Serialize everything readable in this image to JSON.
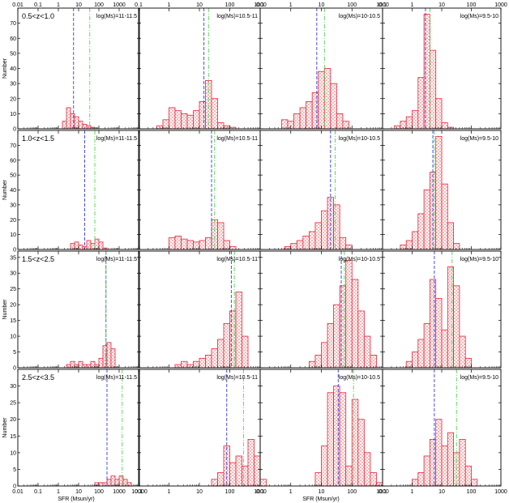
{
  "chart_data": {
    "type": "bar",
    "xlabel": "SFR  (Msun/yr)",
    "ylabel": "Number",
    "x_scale": "log",
    "colors": {
      "hist_edge": "#e8213a",
      "hist_fill": "#f5b8b8",
      "median_line": "#3a3ae0",
      "mean_line": "#4fd34f"
    },
    "x_ticks": [
      [
        "0.01",
        "0.1",
        "1",
        "10",
        "100",
        "1000"
      ],
      [
        "0.1",
        "1",
        "10",
        "100",
        "1000"
      ],
      [
        "0.1",
        "1",
        "10",
        "100",
        "1000"
      ],
      [
        "0.1",
        "1",
        "10",
        "100",
        "1000",
        "10000"
      ]
    ],
    "bottom_ticks": [
      [
        "0.01",
        "0.1",
        "1",
        "10",
        "100",
        "1000",
        "10000"
      ],
      [
        "0.1",
        "1",
        "10",
        "100",
        "1000"
      ],
      [
        "0.1",
        "1",
        "10",
        "100",
        "1000"
      ],
      [
        "0.1",
        "1",
        "10",
        "100",
        "1000",
        "10000"
      ]
    ],
    "columns": [
      "log(Ms)=11-11.5",
      "log(Ms)=10.5-11",
      "log(Ms)=10-10.5",
      "log(Ms)=9.5-10"
    ],
    "rows": [
      {
        "label": "0.5<z<1.0",
        "yticks": [
          "0",
          "10",
          "20",
          "30",
          "40",
          "50",
          "60",
          "70"
        ],
        "ylim": [
          0,
          80
        ],
        "panels": [
          {
            "xlim": [
              0.01,
              10000
            ],
            "bin_edges_log": [
              0.2,
              0.4,
              0.6,
              0.8,
              1.0,
              1.2,
              1.4,
              1.6,
              1.8,
              2.0
            ],
            "counts": [
              5,
              14,
              10,
              8,
              5,
              3,
              2,
              1,
              0
            ],
            "lines_log": [
              0.75,
              1.55
            ]
          },
          {
            "xlim": [
              0.1,
              1000
            ],
            "bin_edges_log": [
              -0.4,
              -0.2,
              0,
              0.2,
              0.4,
              0.6,
              0.8,
              1.0,
              1.2,
              1.4,
              1.6,
              1.8,
              2.0,
              2.2
            ],
            "counts": [
              2,
              6,
              14,
              12,
              10,
              9,
              12,
              18,
              32,
              20,
              4,
              2,
              1
            ],
            "lines_log": [
              1.15,
              1.3
            ]
          },
          {
            "xlim": [
              0.1,
              1000
            ],
            "bin_edges_log": [
              -0.3,
              -0.1,
              0.1,
              0.3,
              0.5,
              0.7,
              0.9,
              1.1,
              1.3,
              1.5,
              1.7,
              1.9
            ],
            "counts": [
              6,
              5,
              10,
              14,
              18,
              24,
              38,
              40,
              30,
              10,
              5
            ],
            "lines_log": [
              0.85,
              1.1
            ]
          },
          {
            "xlim": [
              0.1,
              1000
            ],
            "bin_edges_log": [
              -0.6,
              -0.4,
              -0.2,
              0,
              0.2,
              0.4,
              0.6,
              0.8,
              1.0,
              1.2,
              1.4
            ],
            "counts": [
              2,
              5,
              8,
              12,
              34,
              76,
              52,
              20,
              4,
              1
            ],
            "lines_log": [
              0.45,
              0.6
            ]
          }
        ]
      },
      {
        "label": "1.0<z<1.5",
        "yticks": [
          "0",
          "10",
          "20",
          "30",
          "40",
          "50",
          "60",
          "70"
        ],
        "ylim": [
          0,
          80
        ],
        "panels": [
          {
            "xlim": [
              0.01,
              10000
            ],
            "bin_edges_log": [
              0.6,
              0.8,
              1.0,
              1.2,
              1.4,
              1.6,
              1.8,
              2.0,
              2.2,
              2.4
            ],
            "counts": [
              4,
              5,
              3,
              2,
              6,
              4,
              7,
              5,
              1
            ],
            "lines_log": [
              1.3,
              1.8
            ]
          },
          {
            "xlim": [
              0.1,
              1000
            ],
            "bin_edges_log": [
              0.0,
              0.2,
              0.4,
              0.6,
              0.8,
              1.0,
              1.2,
              1.4,
              1.6,
              1.8,
              2.0,
              2.2
            ],
            "counts": [
              8,
              9,
              7,
              6,
              5,
              6,
              8,
              20,
              18,
              6,
              2
            ],
            "lines_log": [
              1.4,
              1.5
            ]
          },
          {
            "xlim": [
              0.1,
              1000
            ],
            "bin_edges_log": [
              -0.2,
              0,
              0.2,
              0.4,
              0.6,
              0.8,
              1.0,
              1.2,
              1.4,
              1.6,
              1.8,
              2.0
            ],
            "counts": [
              2,
              4,
              6,
              9,
              12,
              18,
              26,
              35,
              30,
              8,
              3
            ],
            "lines_log": [
              1.3,
              1.45
            ]
          },
          {
            "xlim": [
              0.1,
              1000
            ],
            "bin_edges_log": [
              -0.4,
              -0.2,
              0,
              0.2,
              0.4,
              0.6,
              0.8,
              1.0,
              1.2,
              1.4,
              1.6
            ],
            "counts": [
              3,
              6,
              12,
              24,
              40,
              52,
              76,
              44,
              18,
              4
            ],
            "lines_log": [
              0.7,
              0.75
            ]
          }
        ]
      },
      {
        "label": "1.5<z<2.5",
        "yticks": [
          "0",
          "5",
          "10",
          "15",
          "20",
          "25",
          "30",
          "35"
        ],
        "ylim": [
          0,
          37
        ],
        "panels": [
          {
            "xlim": [
              0.01,
              10000
            ],
            "bin_edges_log": [
              0.4,
              0.6,
              0.8,
              1.0,
              1.2,
              1.4,
              1.6,
              1.8,
              2.0,
              2.2,
              2.4,
              2.6,
              2.8
            ],
            "counts": [
              1,
              2,
              1,
              2,
              1,
              1,
              2,
              1,
              3,
              7,
              8,
              6
            ],
            "lines_log": [
              2.35,
              2.35
            ]
          },
          {
            "xlim": [
              0.1,
              1000
            ],
            "bin_edges_log": [
              0.2,
              0.4,
              0.6,
              0.8,
              1.0,
              1.2,
              1.4,
              1.6,
              1.8,
              2.0,
              2.2,
              2.4,
              2.6
            ],
            "counts": [
              1,
              2,
              1,
              2,
              3,
              4,
              6,
              9,
              14,
              18,
              24,
              10,
              4
            ],
            "lines_log": [
              2.05,
              2.15
            ]
          },
          {
            "xlim": [
              0.1,
              1000
            ],
            "bin_edges_log": [
              0.6,
              0.8,
              1.0,
              1.2,
              1.4,
              1.6,
              1.8,
              2.0,
              2.2,
              2.4,
              2.6,
              2.8
            ],
            "counts": [
              2,
              4,
              8,
              14,
              20,
              26,
              34,
              28,
              18,
              10,
              4
            ],
            "lines_log": [
              1.65,
              1.75
            ]
          },
          {
            "xlim": [
              0.1,
              1000
            ],
            "bin_edges_log": [
              -0.2,
              0,
              0.2,
              0.4,
              0.6,
              0.8,
              1.0,
              1.2,
              1.4,
              1.6,
              1.8,
              2.0
            ],
            "counts": [
              2,
              5,
              9,
              14,
              28,
              22,
              12,
              32,
              26,
              10,
              3
            ],
            "lines_log": [
              0.75,
              1.35
            ]
          }
        ]
      },
      {
        "label": "2.5<z<3.5",
        "yticks": [
          "0",
          "5",
          "10",
          "15",
          "20",
          "25",
          "30"
        ],
        "ylim": [
          0,
          35
        ],
        "panels": [
          {
            "xlim": [
              0.01,
              10000
            ],
            "bin_edges_log": [
              1.8,
              2.0,
              2.2,
              2.4,
              2.6,
              2.8,
              3.0,
              3.2,
              3.4,
              3.6
            ],
            "counts": [
              1,
              1,
              1,
              2,
              3,
              2,
              3,
              2,
              1
            ],
            "lines_log": [
              2.4,
              3.15
            ]
          },
          {
            "xlim": [
              0.1,
              1000
            ],
            "bin_edges_log": [
              1.4,
              1.6,
              1.8,
              2.0,
              2.2,
              2.4,
              2.6,
              2.8,
              3.0,
              3.2
            ],
            "counts": [
              2,
              4,
              12,
              7,
              9,
              6,
              14,
              9,
              2
            ],
            "lines_log": [
              1.9,
              2.45
            ]
          },
          {
            "xlim": [
              0.1,
              1000
            ],
            "bin_edges_log": [
              0.8,
              1.0,
              1.2,
              1.4,
              1.6,
              1.8,
              2.0,
              2.2,
              2.4,
              2.6,
              2.8,
              3.0
            ],
            "counts": [
              4,
              12,
              28,
              30,
              28,
              6,
              26,
              20,
              10,
              4,
              1
            ],
            "lines_log": [
              1.55,
              2.05
            ]
          },
          {
            "xlim": [
              0.1,
              1000
            ],
            "bin_edges_log": [
              0.0,
              0.2,
              0.4,
              0.6,
              0.8,
              1.0,
              1.2,
              1.4,
              1.6,
              1.8,
              2.0,
              2.2
            ],
            "counts": [
              2,
              4,
              9,
              14,
              20,
              12,
              16,
              10,
              14,
              6,
              2
            ],
            "lines_log": [
              0.75,
              1.5
            ]
          }
        ]
      }
    ]
  }
}
